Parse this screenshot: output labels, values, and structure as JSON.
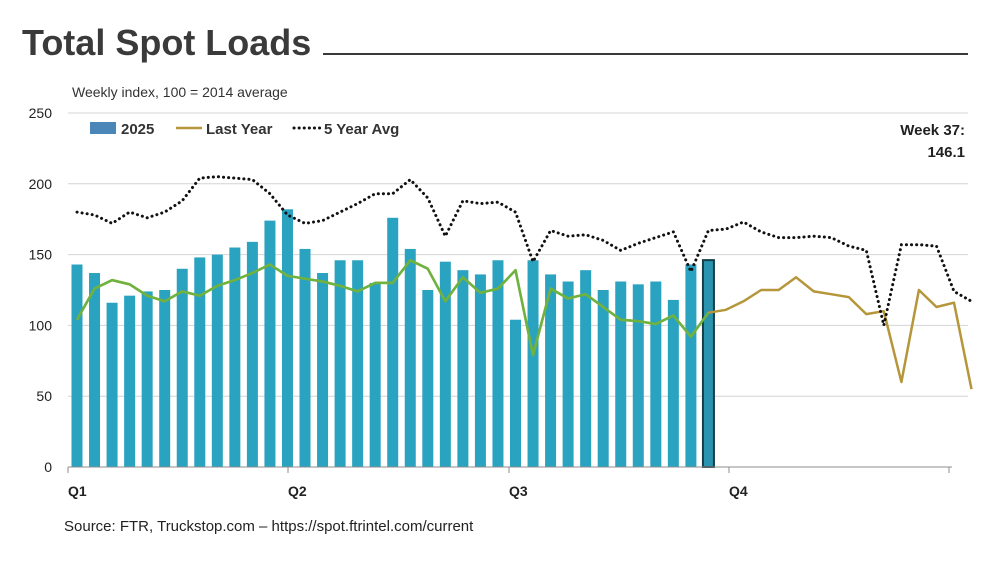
{
  "header": {
    "title": "Total Spot Loads",
    "subtitle": "Weekly index, 100 = 2014 average",
    "week_label": "Week 37:",
    "week_value": "146.1",
    "source": "Source: FTR, Truckstop.com – https://spot.ftrintel.com/current"
  },
  "colors": {
    "bar": "#2aa3c0",
    "bar_highlight": "#2a93ad",
    "legend_bar": "#4a86b8",
    "last_year": "#b5963a",
    "recent_line": "#6db33f",
    "five_year": "#111111"
  },
  "chart_data": {
    "type": "bar",
    "ylim": [
      0,
      250
    ],
    "yticks": [
      0,
      50,
      100,
      150,
      200,
      250
    ],
    "weeks": 52,
    "x_ticks": [
      {
        "label": "Q1",
        "week": 1
      },
      {
        "label": "Q2",
        "week": 14
      },
      {
        "label": "Q3",
        "week": 27
      },
      {
        "label": "Q4",
        "week": 40
      }
    ],
    "grid": true,
    "legend": {
      "position": "top-left",
      "entries": [
        "2025",
        "Last Year",
        "5 Year Avg"
      ]
    },
    "series": [
      {
        "name": "2025",
        "kind": "bar",
        "values": [
          143,
          137,
          116,
          121,
          124,
          125,
          140,
          148,
          150,
          155,
          159,
          174,
          182,
          154,
          137,
          146,
          146,
          130,
          176,
          154,
          125,
          145,
          139,
          136,
          146,
          104,
          146,
          136,
          131,
          139,
          125,
          131,
          129,
          131,
          118,
          143,
          146.1
        ],
        "highlight_last": true
      },
      {
        "name": "Last Year",
        "kind": "line",
        "values": [
          104,
          126,
          132,
          129,
          121,
          117,
          124,
          121,
          128,
          132,
          137,
          143,
          135,
          133,
          131,
          128,
          124,
          130,
          130,
          146,
          140,
          117,
          134,
          123,
          126,
          139,
          79,
          126,
          119,
          122,
          113,
          104,
          103,
          101,
          107,
          92,
          109,
          111,
          117,
          125,
          125,
          134,
          124,
          122,
          120,
          108,
          110,
          60,
          125,
          113,
          116,
          55
        ]
      },
      {
        "kind": "line",
        "color_key": "recent_line",
        "values": [
          104,
          126,
          132,
          129,
          121,
          117,
          124,
          121,
          128,
          132,
          137,
          143,
          135,
          133,
          131,
          128,
          124,
          130,
          130,
          146,
          140,
          117,
          134,
          123,
          126,
          139,
          79,
          126,
          119,
          122,
          113,
          104,
          103,
          101,
          107,
          92,
          109
        ]
      },
      {
        "name": "5 Year Avg",
        "kind": "line",
        "dotted": true,
        "values": [
          180,
          178,
          172,
          180,
          176,
          180,
          188,
          204,
          205,
          204,
          203,
          193,
          178,
          172,
          174,
          180,
          186,
          193,
          193,
          203,
          190,
          163,
          188,
          186,
          187,
          180,
          145,
          167,
          163,
          164,
          160,
          153,
          158,
          162,
          166,
          138,
          167,
          168,
          173,
          166,
          162,
          162,
          163,
          162,
          156,
          153,
          100,
          157,
          157,
          156,
          124,
          117
        ]
      }
    ]
  }
}
